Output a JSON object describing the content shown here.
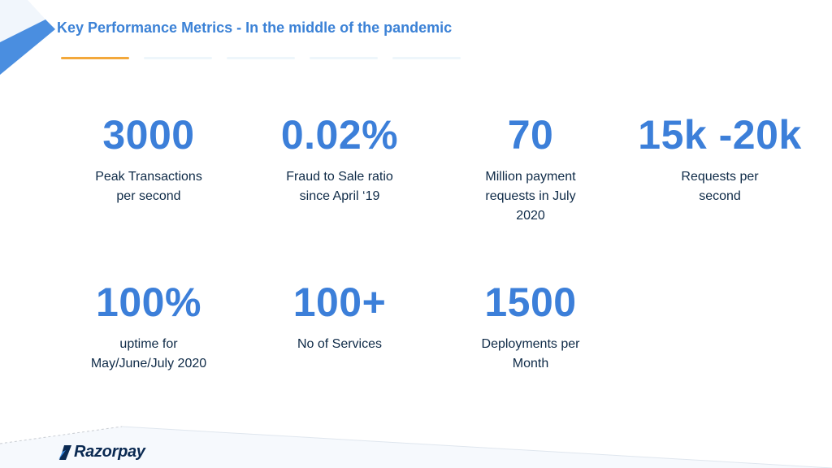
{
  "slide": {
    "title": "Key Performance Metrics - In the middle of the pandemic"
  },
  "metrics_row1": [
    {
      "value": "3000",
      "label_lines": [
        "Peak Transactions",
        "per second"
      ]
    },
    {
      "value": "0.02%",
      "label_lines": [
        "Fraud to Sale ratio",
        "since April ‘19"
      ]
    },
    {
      "value": "70",
      "label_lines": [
        "Million payment",
        "requests in July",
        "2020"
      ]
    },
    {
      "value": "15k -20k",
      "label_lines": [
        "Requests per",
        "second"
      ]
    }
  ],
  "metrics_row2": [
    {
      "value": "100%",
      "label_lines": [
        "uptime for",
        "May/June/July 2020"
      ]
    },
    {
      "value": "100+",
      "label_lines": [
        "No of Services"
      ]
    },
    {
      "value": "1500",
      "label_lines": [
        "Deployments per",
        "Month"
      ]
    }
  ],
  "footer": {
    "brand": "Razorpay",
    "logo_icon": "razorpay-logo-icon"
  },
  "colors": {
    "title": "#3c82d6",
    "metric_value": "#3c7fd9",
    "metric_label": "#0e2a47",
    "active_tab": "#f3a83b",
    "inactive_tab": "#eef6fb",
    "corner_accent": "#4a8ee0",
    "brand_text": "#0b2a52"
  }
}
